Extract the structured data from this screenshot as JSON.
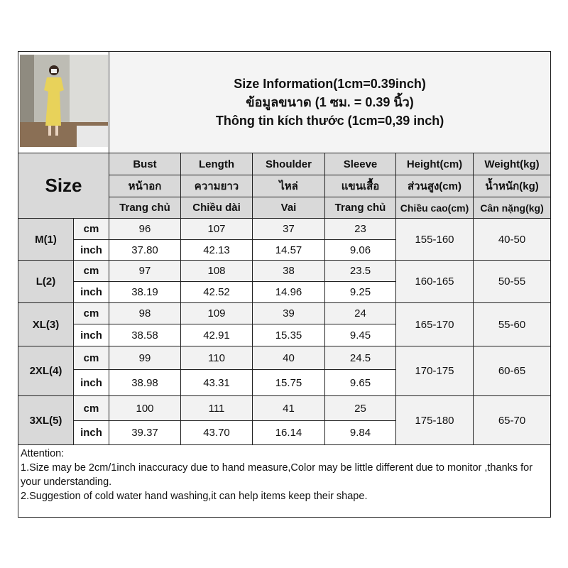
{
  "title": {
    "line1": "Size Information(1cm=0.39inch)",
    "line2": "ข้อมูลขนาด (1 ซม. = 0.39 นิ้ว)",
    "line3": "Thông tin kích thước (1cm=0,39 inch)"
  },
  "size_label": "Size",
  "columns": [
    {
      "en": "Bust",
      "th": "หน้าอก",
      "vi": "Trang chủ"
    },
    {
      "en": "Length",
      "th": "ความยาว",
      "vi": "Chiều dài"
    },
    {
      "en": "Shoulder",
      "th": "ไหล่",
      "vi": "Vai"
    },
    {
      "en": "Sleeve",
      "th": "แขนเสื้อ",
      "vi": "Trang chủ"
    },
    {
      "en": "Height(cm)",
      "th": "ส่วนสูง(cm)",
      "vi": "Chiều cao(cm)"
    },
    {
      "en": "Weight(kg)",
      "th": "น้ำหนัก(kg)",
      "vi": "Cân nặng(kg)"
    }
  ],
  "units": {
    "cm": "cm",
    "inch": "inch"
  },
  "rows": [
    {
      "size": "M(1)",
      "cm": [
        "96",
        "107",
        "37",
        "23"
      ],
      "inch": [
        "37.80",
        "42.13",
        "14.57",
        "9.06"
      ],
      "height": "155-160",
      "weight": "40-50"
    },
    {
      "size": "L(2)",
      "cm": [
        "97",
        "108",
        "38",
        "23.5"
      ],
      "inch": [
        "38.19",
        "42.52",
        "14.96",
        "9.25"
      ],
      "height": "160-165",
      "weight": "50-55"
    },
    {
      "size": "XL(3)",
      "cm": [
        "98",
        "109",
        "39",
        "24"
      ],
      "inch": [
        "38.58",
        "42.91",
        "15.35",
        "9.45"
      ],
      "height": "165-170",
      "weight": "55-60"
    },
    {
      "size": "2XL(4)",
      "cm": [
        "99",
        "110",
        "40",
        "24.5"
      ],
      "inch": [
        "38.98",
        "43.31",
        "15.75",
        "9.65"
      ],
      "height": "170-175",
      "weight": "60-65"
    },
    {
      "size": "3XL(5)",
      "cm": [
        "100",
        "111",
        "41",
        "25"
      ],
      "inch": [
        "39.37",
        "43.70",
        "16.14",
        "9.84"
      ],
      "height": "175-180",
      "weight": "65-70"
    }
  ],
  "attention": {
    "heading": "Attention:",
    "line1": "1.Size may be 2cm/1inch inaccuracy due to hand measure,Color may be little different due to monitor ,thanks for your understanding.",
    "line2": "2.Suggestion of cold water hand washing,it can help items keep their shape."
  }
}
